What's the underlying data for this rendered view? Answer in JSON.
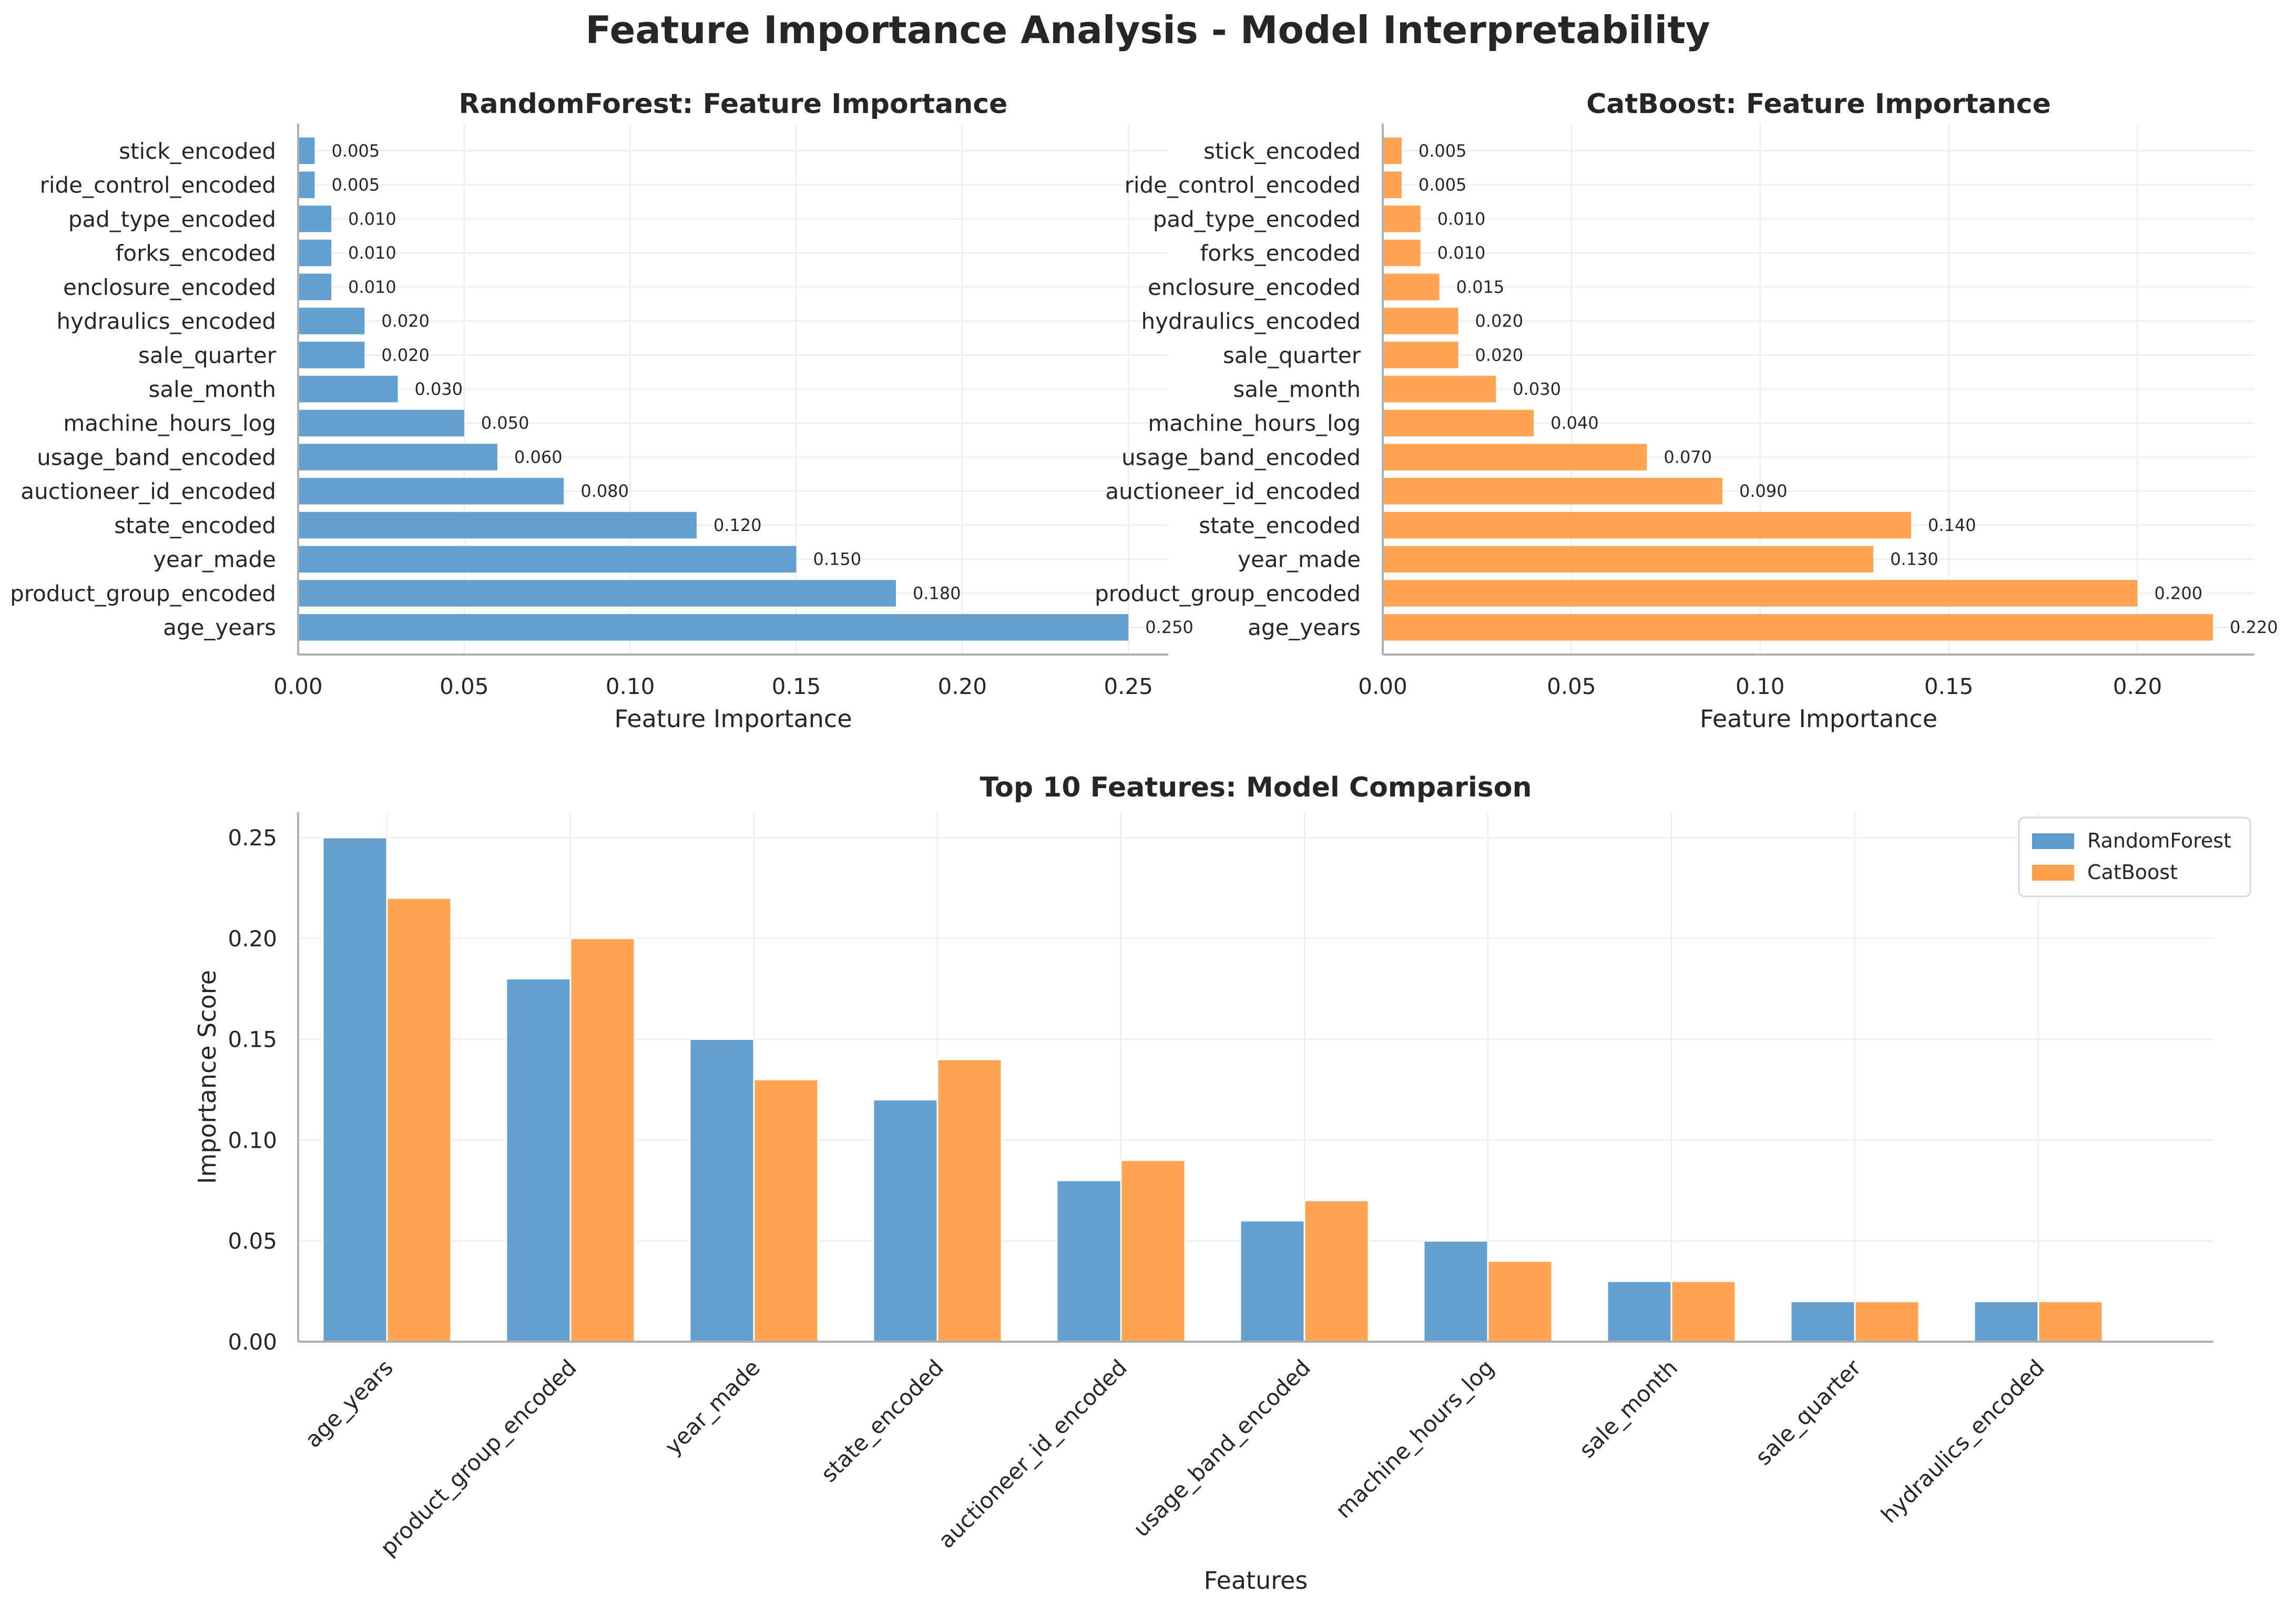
{
  "figure": {
    "suptitle": "Feature Importance Analysis - Model Interpretability"
  },
  "colors": {
    "randomforest": "#5b9bcd",
    "catboost": "#ffa04a",
    "axis": "#b0b0b0",
    "grid": "#ebebeb",
    "text": "#262626"
  },
  "chart_data": [
    {
      "id": "rf",
      "type": "bar",
      "orientation": "horizontal",
      "title": "RandomForest: Feature Importance",
      "xlabel": "Feature Importance",
      "ylabel": "",
      "xlim": [
        0,
        0.262
      ],
      "xticks": [
        0.0,
        0.05,
        0.1,
        0.15,
        0.2,
        0.25
      ],
      "xtick_labels": [
        "0.00",
        "0.05",
        "0.10",
        "0.15",
        "0.20",
        "0.25"
      ],
      "grid": true,
      "color": "#5b9bcd",
      "categories": [
        "age_years",
        "product_group_encoded",
        "year_made",
        "state_encoded",
        "auctioneer_id_encoded",
        "usage_band_encoded",
        "machine_hours_log",
        "sale_month",
        "sale_quarter",
        "hydraulics_encoded",
        "enclosure_encoded",
        "forks_encoded",
        "pad_type_encoded",
        "ride_control_encoded",
        "stick_encoded"
      ],
      "values": [
        0.25,
        0.18,
        0.15,
        0.12,
        0.08,
        0.06,
        0.05,
        0.03,
        0.02,
        0.02,
        0.01,
        0.01,
        0.01,
        0.005,
        0.005
      ],
      "value_labels": [
        "0.250",
        "0.180",
        "0.150",
        "0.120",
        "0.080",
        "0.060",
        "0.050",
        "0.030",
        "0.020",
        "0.020",
        "0.010",
        "0.010",
        "0.010",
        "0.005",
        "0.005"
      ]
    },
    {
      "id": "cb",
      "type": "bar",
      "orientation": "horizontal",
      "title": "CatBoost: Feature Importance",
      "xlabel": "Feature Importance",
      "ylabel": "",
      "xlim": [
        0,
        0.231
      ],
      "xticks": [
        0.0,
        0.05,
        0.1,
        0.15,
        0.2
      ],
      "xtick_labels": [
        "0.00",
        "0.05",
        "0.10",
        "0.15",
        "0.20"
      ],
      "grid": true,
      "color": "#ffa04a",
      "categories": [
        "age_years",
        "product_group_encoded",
        "year_made",
        "state_encoded",
        "auctioneer_id_encoded",
        "usage_band_encoded",
        "machine_hours_log",
        "sale_month",
        "sale_quarter",
        "hydraulics_encoded",
        "enclosure_encoded",
        "forks_encoded",
        "pad_type_encoded",
        "ride_control_encoded",
        "stick_encoded"
      ],
      "values": [
        0.22,
        0.2,
        0.13,
        0.14,
        0.09,
        0.07,
        0.04,
        0.03,
        0.02,
        0.02,
        0.015,
        0.01,
        0.01,
        0.005,
        0.005
      ],
      "value_labels": [
        "0.220",
        "0.200",
        "0.130",
        "0.140",
        "0.090",
        "0.070",
        "0.040",
        "0.030",
        "0.020",
        "0.020",
        "0.015",
        "0.010",
        "0.010",
        "0.005",
        "0.005"
      ]
    },
    {
      "id": "cmp",
      "type": "bar",
      "orientation": "vertical",
      "title": "Top 10 Features: Model Comparison",
      "xlabel": "Features",
      "ylabel": "Importance Score",
      "ylim": [
        0,
        0.2625
      ],
      "yticks": [
        0.0,
        0.05,
        0.1,
        0.15,
        0.2,
        0.25
      ],
      "ytick_labels": [
        "0.00",
        "0.05",
        "0.10",
        "0.15",
        "0.20",
        "0.25"
      ],
      "grid": true,
      "legend_position": "top-right",
      "categories": [
        "age_years",
        "product_group_encoded",
        "year_made",
        "state_encoded",
        "auctioneer_id_encoded",
        "usage_band_encoded",
        "machine_hours_log",
        "sale_month",
        "sale_quarter",
        "hydraulics_encoded"
      ],
      "series": [
        {
          "name": "RandomForest",
          "color": "#5b9bcd",
          "values": [
            0.25,
            0.18,
            0.15,
            0.12,
            0.08,
            0.06,
            0.05,
            0.03,
            0.02,
            0.02
          ]
        },
        {
          "name": "CatBoost",
          "color": "#ffa04a",
          "values": [
            0.22,
            0.2,
            0.13,
            0.14,
            0.09,
            0.07,
            0.04,
            0.03,
            0.02,
            0.02
          ]
        }
      ]
    }
  ]
}
